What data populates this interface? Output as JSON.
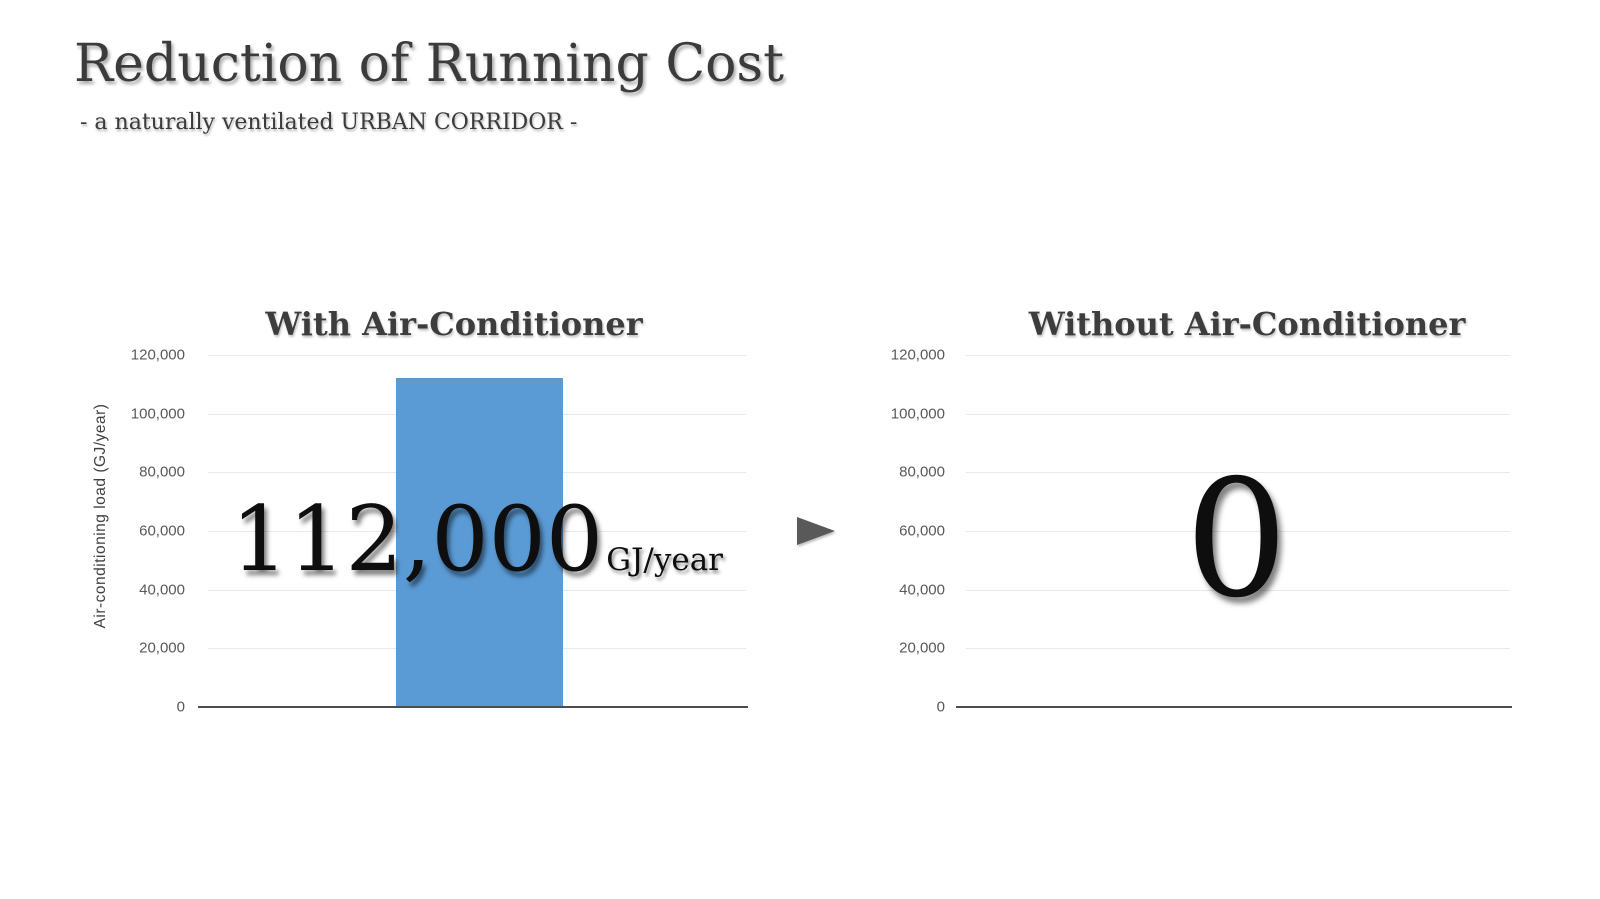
{
  "page": {
    "title": "Reduction of Running Cost",
    "subtitle": "- a naturally ventilated URBAN CORRIDOR -"
  },
  "colors": {
    "bar_blue": "#5B9BD5",
    "arrow_gray": "#595959",
    "heading_text": "#3C3C3C",
    "tick_text": "#595959",
    "gridline": "#E9E9E9",
    "axis_line": "#4D4D4D",
    "annotation_text": "#0E0E0E"
  },
  "icons": {
    "between_charts": "arrow-right-triangle-icon"
  },
  "chart_data": [
    {
      "type": "bar",
      "title": "With Air-Conditioner",
      "xlabel": "",
      "ylabel": "Air-conditioning load (GJ/year)",
      "ylim": [
        0,
        120000
      ],
      "ytick_labels": [
        "120,000",
        "100,000",
        "80,000",
        "60,000",
        "40,000",
        "20,000",
        "0"
      ],
      "grid": true,
      "legend": false,
      "bar_color": "#5B9BD5",
      "values": [
        112000
      ],
      "annotation": {
        "value": "112,000",
        "unit": "GJ/year"
      }
    },
    {
      "type": "bar",
      "title": "Without Air-Conditioner",
      "xlabel": "",
      "ylabel": "",
      "ylim": [
        0,
        120000
      ],
      "ytick_labels": [
        "120,000",
        "100,000",
        "80,000",
        "60,000",
        "40,000",
        "20,000",
        "0"
      ],
      "grid": true,
      "legend": false,
      "bar_color": "#5B9BD5",
      "values": [
        0
      ],
      "annotation": {
        "value": "0",
        "unit": ""
      }
    }
  ]
}
